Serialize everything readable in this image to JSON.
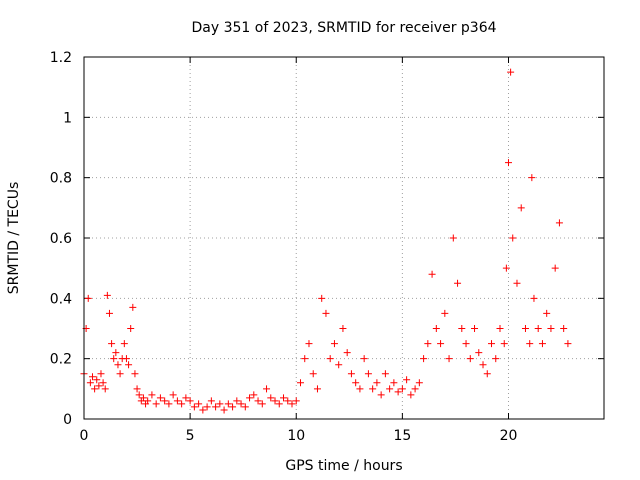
{
  "chart_data": {
    "type": "scatter",
    "title": "Day 351 of 2023, SRMTID for receiver p364",
    "xlabel": "GPS time / hours",
    "ylabel": "SRMTID / TECUs",
    "xlim": [
      0,
      24.5
    ],
    "ylim": [
      0,
      1.2
    ],
    "x_ticks": [
      0,
      5,
      10,
      15,
      20
    ],
    "x_tick_labels": [
      "0",
      "5",
      "10",
      "15",
      "20"
    ],
    "y_ticks": [
      0,
      0.2,
      0.4,
      0.6,
      0.8,
      1.0,
      1.2
    ],
    "y_tick_labels": [
      "0",
      "0.2",
      "0.4",
      "0.6",
      "0.8",
      "1",
      "1.2"
    ],
    "grid": true,
    "marker": "+",
    "color": "#ff0000",
    "series": [
      {
        "name": "SRMTID",
        "x": [
          0.0,
          0.1,
          0.2,
          0.3,
          0.4,
          0.5,
          0.6,
          0.7,
          0.8,
          0.9,
          1.0,
          1.1,
          1.2,
          1.3,
          1.4,
          1.5,
          1.6,
          1.7,
          1.8,
          1.9,
          2.0,
          2.1,
          2.2,
          2.3,
          2.4,
          2.5,
          2.6,
          2.7,
          2.8,
          2.9,
          3.0,
          3.2,
          3.4,
          3.6,
          3.8,
          4.0,
          4.2,
          4.4,
          4.6,
          4.8,
          5.0,
          5.2,
          5.4,
          5.6,
          5.8,
          6.0,
          6.2,
          6.4,
          6.6,
          6.8,
          7.0,
          7.2,
          7.4,
          7.6,
          7.8,
          8.0,
          8.2,
          8.4,
          8.6,
          8.8,
          9.0,
          9.2,
          9.4,
          9.6,
          9.8,
          10.0,
          10.2,
          10.4,
          10.6,
          10.8,
          11.0,
          11.2,
          11.4,
          11.6,
          11.8,
          12.0,
          12.2,
          12.4,
          12.6,
          12.8,
          13.0,
          13.2,
          13.4,
          13.6,
          13.8,
          14.0,
          14.2,
          14.4,
          14.6,
          14.8,
          15.0,
          15.2,
          15.4,
          15.6,
          15.8,
          16.0,
          16.2,
          16.4,
          16.6,
          16.8,
          17.0,
          17.2,
          17.4,
          17.6,
          17.8,
          18.0,
          18.2,
          18.4,
          18.6,
          18.8,
          19.0,
          19.2,
          19.4,
          19.6,
          19.8,
          19.9,
          20.0,
          20.1,
          20.2,
          20.4,
          20.6,
          20.8,
          21.0,
          21.1,
          21.2,
          21.4,
          21.6,
          21.8,
          22.0,
          22.2,
          22.4,
          22.6,
          22.8
        ],
        "y": [
          0.15,
          0.3,
          0.4,
          0.12,
          0.14,
          0.1,
          0.13,
          0.11,
          0.15,
          0.12,
          0.1,
          0.41,
          0.35,
          0.25,
          0.2,
          0.22,
          0.18,
          0.15,
          0.2,
          0.25,
          0.2,
          0.18,
          0.3,
          0.37,
          0.15,
          0.1,
          0.08,
          0.06,
          0.07,
          0.05,
          0.06,
          0.08,
          0.05,
          0.07,
          0.06,
          0.05,
          0.08,
          0.06,
          0.05,
          0.07,
          0.06,
          0.04,
          0.05,
          0.03,
          0.04,
          0.06,
          0.04,
          0.05,
          0.03,
          0.05,
          0.04,
          0.06,
          0.05,
          0.04,
          0.07,
          0.08,
          0.06,
          0.05,
          0.1,
          0.07,
          0.06,
          0.05,
          0.07,
          0.06,
          0.05,
          0.06,
          0.12,
          0.2,
          0.25,
          0.15,
          0.1,
          0.4,
          0.35,
          0.2,
          0.25,
          0.18,
          0.3,
          0.22,
          0.15,
          0.12,
          0.1,
          0.2,
          0.15,
          0.1,
          0.12,
          0.08,
          0.15,
          0.1,
          0.12,
          0.09,
          0.1,
          0.13,
          0.08,
          0.1,
          0.12,
          0.2,
          0.25,
          0.48,
          0.3,
          0.25,
          0.35,
          0.2,
          0.6,
          0.45,
          0.3,
          0.25,
          0.2,
          0.3,
          0.22,
          0.18,
          0.15,
          0.25,
          0.2,
          0.3,
          0.25,
          0.5,
          0.85,
          1.15,
          0.6,
          0.45,
          0.7,
          0.3,
          0.25,
          0.8,
          0.4,
          0.3,
          0.25,
          0.35,
          0.3,
          0.5,
          0.65,
          0.3,
          0.25
        ]
      }
    ]
  }
}
